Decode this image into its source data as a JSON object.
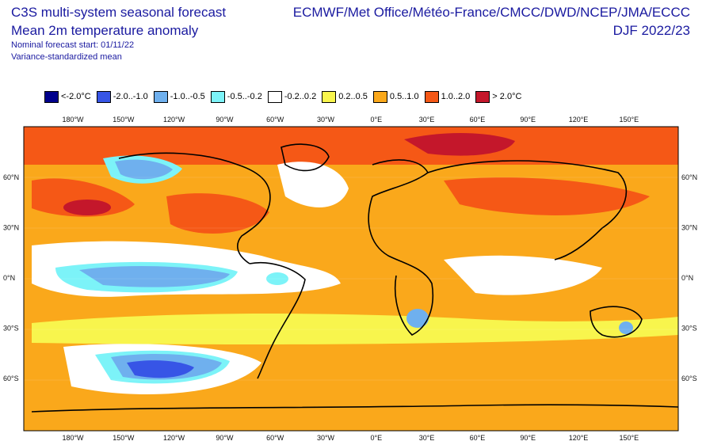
{
  "header": {
    "title_line1": "C3S multi-system seasonal forecast",
    "title_line2": "Mean 2m temperature anomaly",
    "nominal_start": "Nominal forecast start: 01/11/22",
    "mean_type": "Variance-standardized mean",
    "centres": "ECMWF/Met Office/Météo-France/CMCC/DWD/NCEP/JMA/ECCC",
    "season": "DJF 2022/23"
  },
  "legend": [
    {
      "label": "<-2.0°C",
      "color": "#00008c"
    },
    {
      "label": "-2.0..-1.0",
      "color": "#3755e6"
    },
    {
      "label": "-1.0..-0.5",
      "color": "#6fb0ee"
    },
    {
      "label": "-0.5..-0.2",
      "color": "#7cf3f8"
    },
    {
      "label": "-0.2..0.2",
      "color": "#ffffff"
    },
    {
      "label": "0.2..0.5",
      "color": "#f8f54d"
    },
    {
      "label": "0.5..1.0",
      "color": "#faa81b"
    },
    {
      "label": "1.0..2.0",
      "color": "#f55816"
    },
    {
      "label": "> 2.0°C",
      "color": "#c4172b"
    }
  ],
  "axes": {
    "lon_labels": [
      "180°W",
      "150°W",
      "120°W",
      "90°W",
      "60°W",
      "30°W",
      "0°E",
      "30°E",
      "60°E",
      "90°E",
      "120°E",
      "150°E"
    ],
    "lat_labels": [
      "60°N",
      "30°N",
      "0°N",
      "30°S",
      "60°S"
    ]
  }
}
